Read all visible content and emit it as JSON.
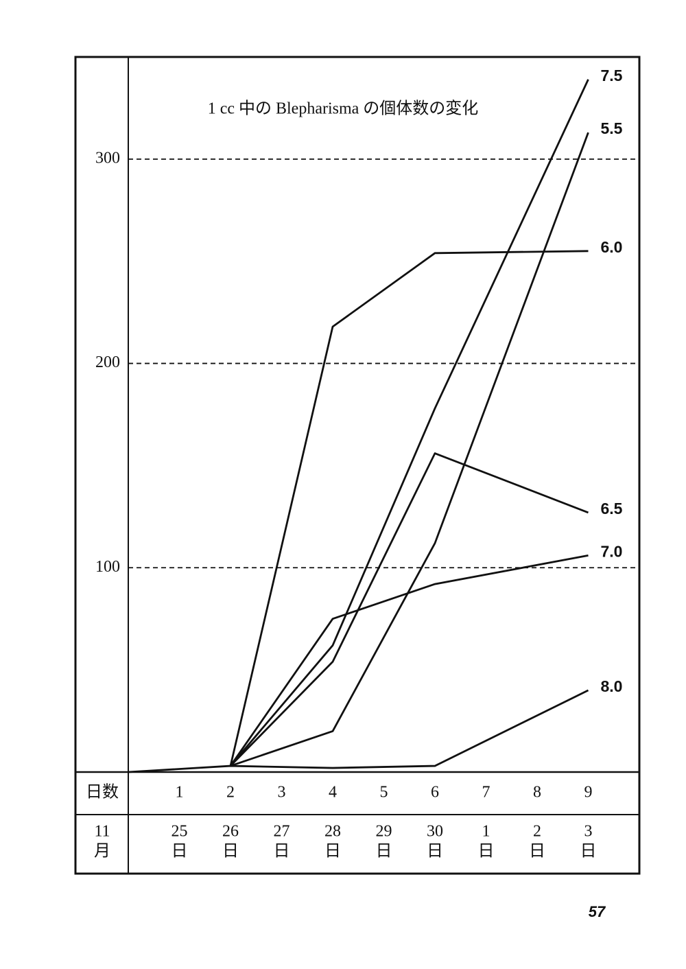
{
  "chart_data": {
    "type": "line",
    "title": "1 cc 中の Blepharisma の個体数の変化",
    "xlim": [
      0,
      10
    ],
    "ylim": [
      0,
      350
    ],
    "xticks": [
      1,
      2,
      3,
      4,
      5,
      6,
      7,
      8,
      9
    ],
    "yticks": [
      100,
      200,
      300
    ],
    "grid": true,
    "grid_style": "dashed",
    "xlabel": "日数",
    "month_label": [
      "11",
      "月"
    ],
    "date_labels": [
      [
        "25",
        "日"
      ],
      [
        "26",
        "日"
      ],
      [
        "27",
        "日"
      ],
      [
        "28",
        "日"
      ],
      [
        "29",
        "日"
      ],
      [
        "30",
        "日"
      ],
      [
        "1",
        "日"
      ],
      [
        "2",
        "日"
      ],
      [
        "3",
        "日"
      ]
    ],
    "series": [
      {
        "name": "7.5",
        "color": "#111111",
        "x": [
          2,
          4,
          6,
          9
        ],
        "values": [
          3,
          62,
          178,
          339
        ]
      },
      {
        "name": "5.5",
        "color": "#111111",
        "x": [
          2,
          4,
          6,
          9
        ],
        "values": [
          3,
          20,
          112,
          313
        ]
      },
      {
        "name": "6.0",
        "color": "#111111",
        "x": [
          2,
          4,
          6,
          9
        ],
        "values": [
          3,
          218,
          254,
          255
        ]
      },
      {
        "name": "6.5",
        "color": "#111111",
        "x": [
          2,
          4,
          6,
          9
        ],
        "values": [
          3,
          54,
          156,
          127
        ]
      },
      {
        "name": "7.0",
        "color": "#111111",
        "x": [
          2,
          4,
          6,
          9
        ],
        "values": [
          3,
          75,
          92,
          106
        ]
      },
      {
        "name": "8.0",
        "color": "#111111",
        "x": [
          0,
          2,
          4,
          6,
          9
        ],
        "values": [
          0,
          3,
          2,
          3,
          40
        ]
      }
    ]
  },
  "page_number": "57"
}
